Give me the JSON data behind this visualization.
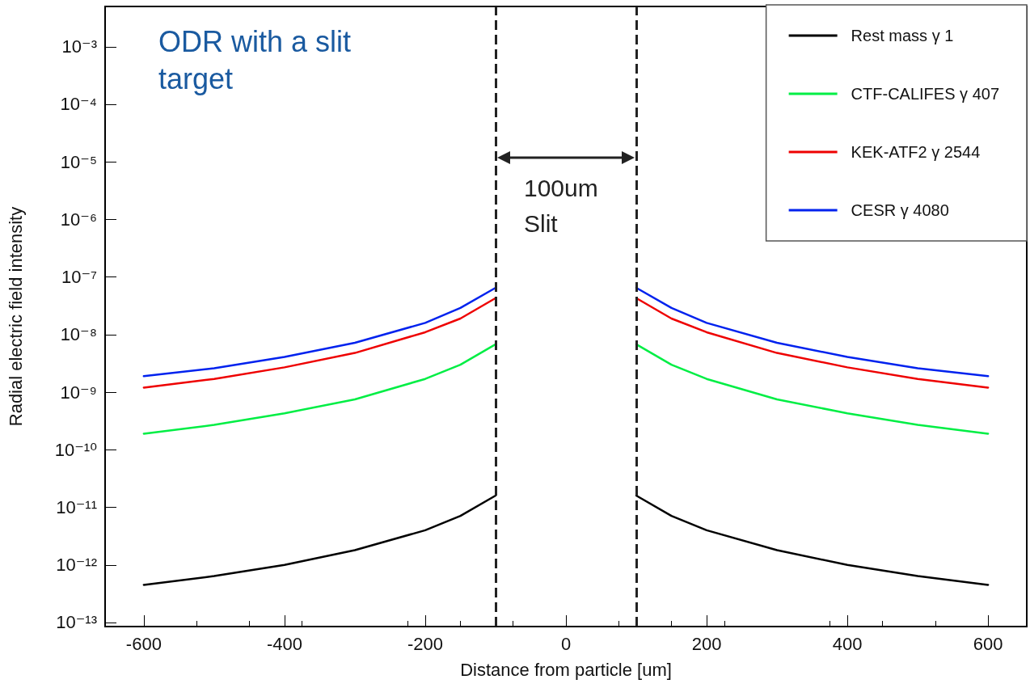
{
  "chart_data": {
    "type": "line",
    "xlabel": "Distance from particle [um]",
    "ylabel": "Radial electric field intensity",
    "annotations": [
      "ODR with a slit target",
      "100um Slit"
    ],
    "x": [
      -600,
      -500,
      -400,
      -300,
      -200,
      -150,
      -100,
      0,
      100,
      150,
      200,
      300,
      400,
      500,
      600
    ],
    "series": [
      {
        "name": "Rest mass γ 1",
        "color": "#000000",
        "values": [
          4.5e-13,
          6.4e-13,
          1e-12,
          1.8e-12,
          4e-12,
          7.1e-12,
          1.6e-11,
          null,
          1.6e-11,
          7.1e-12,
          4e-12,
          1.8e-12,
          1e-12,
          6.4e-13,
          4.5e-13
        ]
      },
      {
        "name": "CTF-CALIFES γ 407",
        "color": "#00ee44",
        "values": [
          1.9e-10,
          2.7e-10,
          4.3e-10,
          7.5e-10,
          1.7e-09,
          3e-09,
          6.8e-09,
          null,
          6.8e-09,
          3e-09,
          1.7e-09,
          7.5e-10,
          4.3e-10,
          2.7e-10,
          1.9e-10
        ]
      },
      {
        "name": "KEK-ATF2 γ 2544",
        "color": "#ee0000",
        "values": [
          1.2e-09,
          1.7e-09,
          2.7e-09,
          4.8e-09,
          1.1e-08,
          1.9e-08,
          4.3e-08,
          null,
          4.3e-08,
          1.9e-08,
          1.1e-08,
          4.8e-09,
          2.7e-09,
          1.7e-09,
          1.2e-09
        ]
      },
      {
        "name": "CESR γ 4080",
        "color": "#0022ee",
        "values": [
          1.9e-09,
          2.6e-09,
          4.1e-09,
          7.2e-09,
          1.6e-08,
          2.9e-08,
          6.5e-08,
          null,
          6.5e-08,
          2.9e-08,
          1.6e-08,
          7.2e-09,
          4.1e-09,
          2.6e-09,
          1.9e-09
        ]
      }
    ],
    "xlim": [
      -655,
      655
    ],
    "xticks": [
      -600,
      -400,
      -200,
      0,
      200,
      400,
      600
    ],
    "ylim": [
      8.5e-14,
      0.005
    ],
    "log": "y",
    "yticks": [
      {
        "value": 1e-13,
        "label": "10⁻¹³"
      },
      {
        "value": 1e-12,
        "label": "10⁻¹²"
      },
      {
        "value": 1e-11,
        "label": "10⁻¹¹"
      },
      {
        "value": 1e-10,
        "label": "10⁻¹⁰"
      },
      {
        "value": 1e-09,
        "label": "10⁻⁹"
      },
      {
        "value": 1e-08,
        "label": "10⁻⁸"
      },
      {
        "value": 1e-07,
        "label": "10⁻⁷"
      },
      {
        "value": 1e-06,
        "label": "10⁻⁶"
      },
      {
        "value": 1e-05,
        "label": "10⁻⁵"
      },
      {
        "value": 0.0001,
        "label": "10⁻⁴"
      },
      {
        "value": 0.001,
        "label": "10⁻³"
      }
    ],
    "ref_lines": [
      {
        "axis": "x",
        "value": -100,
        "color": "#222222",
        "line_style": "dashed"
      },
      {
        "axis": "x",
        "value": 100,
        "color": "#222222",
        "line_style": "dashed"
      }
    ],
    "grid": false,
    "legend": "top right",
    "marker": "none",
    "line_style": "solid"
  }
}
